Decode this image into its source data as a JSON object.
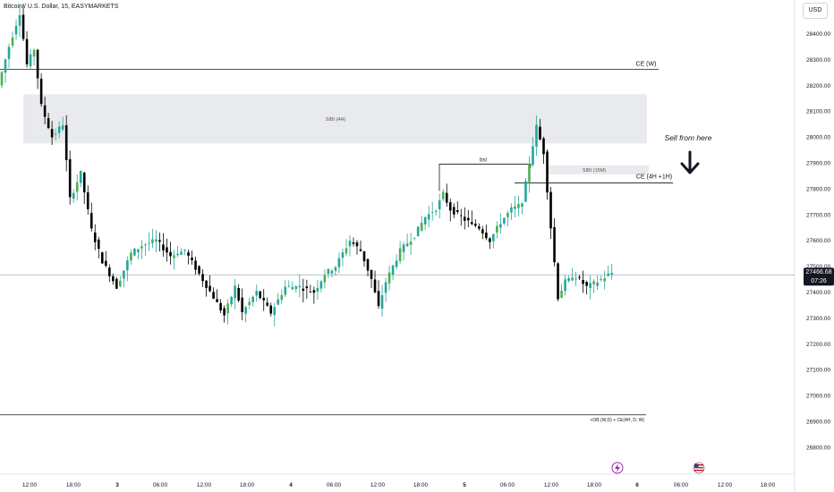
{
  "header": {
    "symbol_title": "Bitcoin / U.S. Dollar, 15, EASYMARKETS",
    "currency_button": "USD"
  },
  "chart_data": {
    "type": "candlestick",
    "y_axis": {
      "ticks": [
        28400,
        28300,
        28200,
        28100,
        28000,
        27900,
        27800,
        27700,
        27600,
        27500,
        27400,
        27300,
        27200,
        27100,
        27000,
        26900,
        26800
      ],
      "tick_labels": [
        "28400.00",
        "28300.00",
        "28200.00",
        "28100.00",
        "28000.00",
        "27900.00",
        "27800.00",
        "27700.00",
        "27600.00",
        "27500.00",
        "27400.00",
        "27300.00",
        "27200.00",
        "27100.00",
        "27000.00",
        "26900.00",
        "26800.00"
      ],
      "ylim": [
        26740,
        28560
      ]
    },
    "x_axis": {
      "tick_labels": [
        "12:00",
        "18:00",
        "3",
        "06:00",
        "12:00",
        "18:00",
        "4",
        "06:00",
        "12:00",
        "18:00",
        "5",
        "06:00",
        "12:00",
        "18:00",
        "6",
        "06:00",
        "12:00",
        "18:00"
      ],
      "bold_labels": [
        "3",
        "4",
        "5",
        "6"
      ]
    },
    "last_price": {
      "value": 27466.68,
      "label": "27466.68",
      "countdown": "07:26",
      "color": "#131722"
    },
    "price_path": [
      [
        0,
        28200
      ],
      [
        3,
        28350
      ],
      [
        6,
        28480
      ],
      [
        8,
        28280
      ],
      [
        10,
        28340
      ],
      [
        12,
        28120
      ],
      [
        15,
        28000
      ],
      [
        18,
        28050
      ],
      [
        20,
        27760
      ],
      [
        23,
        27860
      ],
      [
        26,
        27640
      ],
      [
        29,
        27520
      ],
      [
        33,
        27420
      ],
      [
        37,
        27550
      ],
      [
        40,
        27580
      ],
      [
        44,
        27600
      ],
      [
        48,
        27540
      ],
      [
        52,
        27560
      ],
      [
        56,
        27470
      ],
      [
        60,
        27380
      ],
      [
        63,
        27310
      ],
      [
        66,
        27420
      ],
      [
        68,
        27320
      ],
      [
        72,
        27400
      ],
      [
        76,
        27320
      ],
      [
        80,
        27420
      ],
      [
        84,
        27420
      ],
      [
        88,
        27400
      ],
      [
        91,
        27470
      ],
      [
        94,
        27500
      ],
      [
        98,
        27600
      ],
      [
        101,
        27560
      ],
      [
        104,
        27450
      ],
      [
        106,
        27340
      ],
      [
        108,
        27440
      ],
      [
        112,
        27560
      ],
      [
        116,
        27620
      ],
      [
        119,
        27690
      ],
      [
        122,
        27720
      ],
      [
        124,
        27780
      ],
      [
        126,
        27720
      ],
      [
        130,
        27680
      ],
      [
        134,
        27650
      ],
      [
        137,
        27600
      ],
      [
        140,
        27670
      ],
      [
        143,
        27720
      ],
      [
        146,
        27740
      ],
      [
        148,
        27900
      ],
      [
        150,
        28040
      ],
      [
        152,
        27940
      ],
      [
        154,
        27650
      ],
      [
        156,
        27380
      ],
      [
        158,
        27440
      ],
      [
        161,
        27460
      ],
      [
        164,
        27420
      ],
      [
        167,
        27440
      ],
      [
        170,
        27466.68
      ]
    ],
    "gap_zones": [
      {
        "label": "SIBI (4H)",
        "top": 28165,
        "bottom": 27975,
        "color": "#e8eaed"
      },
      {
        "label": "SIBI (15M)",
        "top": 27890,
        "bottom": 27855,
        "color": "#e8eaed"
      }
    ],
    "levels": [
      {
        "label": "CE (W)",
        "price": 28262
      },
      {
        "label": "CE (4H +1H)",
        "price": 27822
      },
      {
        "label": "+OB (W,D) + CE(4H, D, W)",
        "price": 26925
      },
      {
        "label": "",
        "price": 27466.68
      }
    ],
    "bsl": {
      "label": "bsl",
      "price": 27895
    },
    "annotation": {
      "text": "Sell from here",
      "icon": "down-arrow-icon"
    },
    "events": [
      {
        "icon": "lightning-event-icon",
        "color": "#9c27b0"
      },
      {
        "icon": "us-flag-event-icon",
        "color": "#b22234"
      }
    ],
    "colors": {
      "up": "#26a69a",
      "up_accent": "#4caf50",
      "down": "#000000"
    }
  }
}
